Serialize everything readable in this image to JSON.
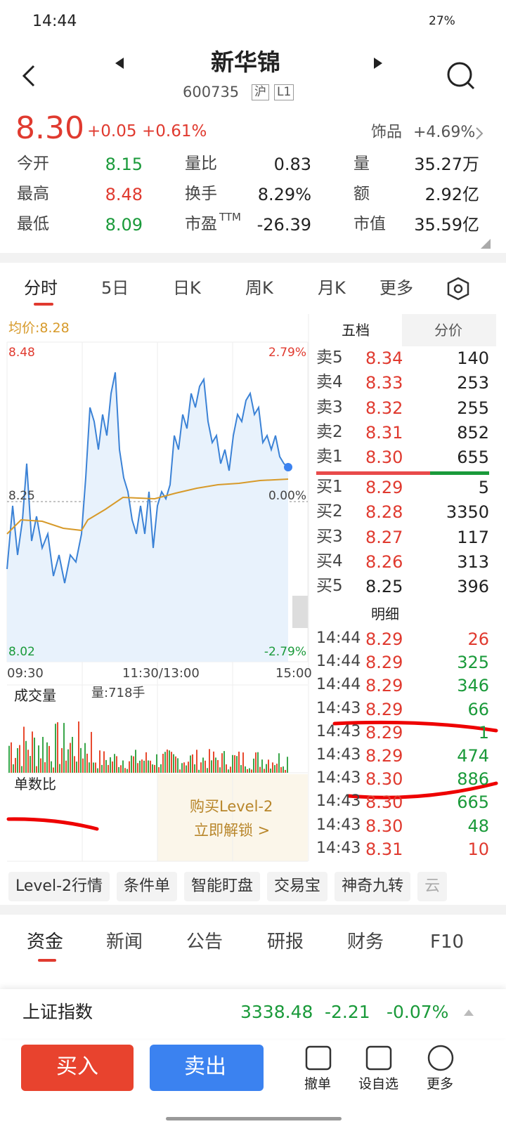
{
  "status": {
    "time": "14:44",
    "battery": "27%"
  },
  "header": {
    "title": "新华锦",
    "code": "600735",
    "tags": [
      "沪",
      "L1"
    ]
  },
  "quote": {
    "price": "8.30",
    "change": "+0.05",
    "pct": "+0.61%",
    "sector": "饰品",
    "sector_pct": "+4.69%"
  },
  "stats": [
    [
      "今开",
      "8.15",
      "量比",
      "0.83",
      "量",
      "35.27万"
    ],
    [
      "最高",
      "8.48",
      "换手",
      "8.29%",
      "额",
      "2.92亿"
    ],
    [
      "最低",
      "8.09",
      "市盈",
      "-26.39",
      "市值",
      "35.59亿"
    ]
  ],
  "pe_sup": "TTM",
  "tabs": [
    "分时",
    "5日",
    "日K",
    "周K",
    "月K",
    "更多"
  ],
  "chart": {
    "avg": "均价:8.28",
    "high": "8.48",
    "low": "8.02",
    "pct_high": "2.79%",
    "pct_low": "-2.79%",
    "mid": "8.25",
    "mid_pct": "0.00%",
    "times": [
      "09:30",
      "11:30/13:00",
      "15:00"
    ],
    "volume_label": "成交量",
    "volume_text": "量:718手",
    "ratio_label": "单数比",
    "promo": [
      "购买Level-2",
      "立即解锁 >"
    ]
  },
  "orderbook": {
    "tabs": [
      "五档",
      "分价"
    ],
    "asks": [
      [
        "卖5",
        "8.34",
        "140"
      ],
      [
        "卖4",
        "8.33",
        "253"
      ],
      [
        "卖3",
        "8.32",
        "255"
      ],
      [
        "卖2",
        "8.31",
        "852"
      ],
      [
        "卖1",
        "8.30",
        "655"
      ]
    ],
    "bids": [
      [
        "买1",
        "8.29",
        "5"
      ],
      [
        "买2",
        "8.28",
        "3350"
      ],
      [
        "买3",
        "8.27",
        "117"
      ],
      [
        "买4",
        "8.26",
        "313"
      ],
      [
        "买5",
        "8.25",
        "396"
      ]
    ],
    "detail": "明细",
    "trades": [
      [
        "14:44",
        "8.29",
        "26"
      ],
      [
        "14:44",
        "8.29",
        "325"
      ],
      [
        "14:44",
        "8.29",
        "346"
      ],
      [
        "14:43",
        "8.29",
        "66"
      ],
      [
        "14:43",
        "8.29",
        "1"
      ],
      [
        "14:43",
        "8.29",
        "474"
      ],
      [
        "14:43",
        "8.30",
        "886"
      ],
      [
        "14:43",
        "8.30",
        "665"
      ],
      [
        "14:43",
        "8.30",
        "48"
      ],
      [
        "14:43",
        "8.31",
        "10"
      ]
    ]
  },
  "tools": [
    "Level-2行情",
    "条件单",
    "智能盯盘",
    "交易宝",
    "神奇九转",
    "云"
  ],
  "news_tabs": [
    "资金",
    "新闻",
    "公告",
    "研报",
    "财务",
    "F10"
  ],
  "index": {
    "name": "上证指数",
    "value": "3338.48",
    "change": "-2.21",
    "pct": "-0.07%"
  },
  "buttons": {
    "buy": "买入",
    "sell": "卖出",
    "actions": [
      "撤单",
      "设自选",
      "更多"
    ]
  }
}
